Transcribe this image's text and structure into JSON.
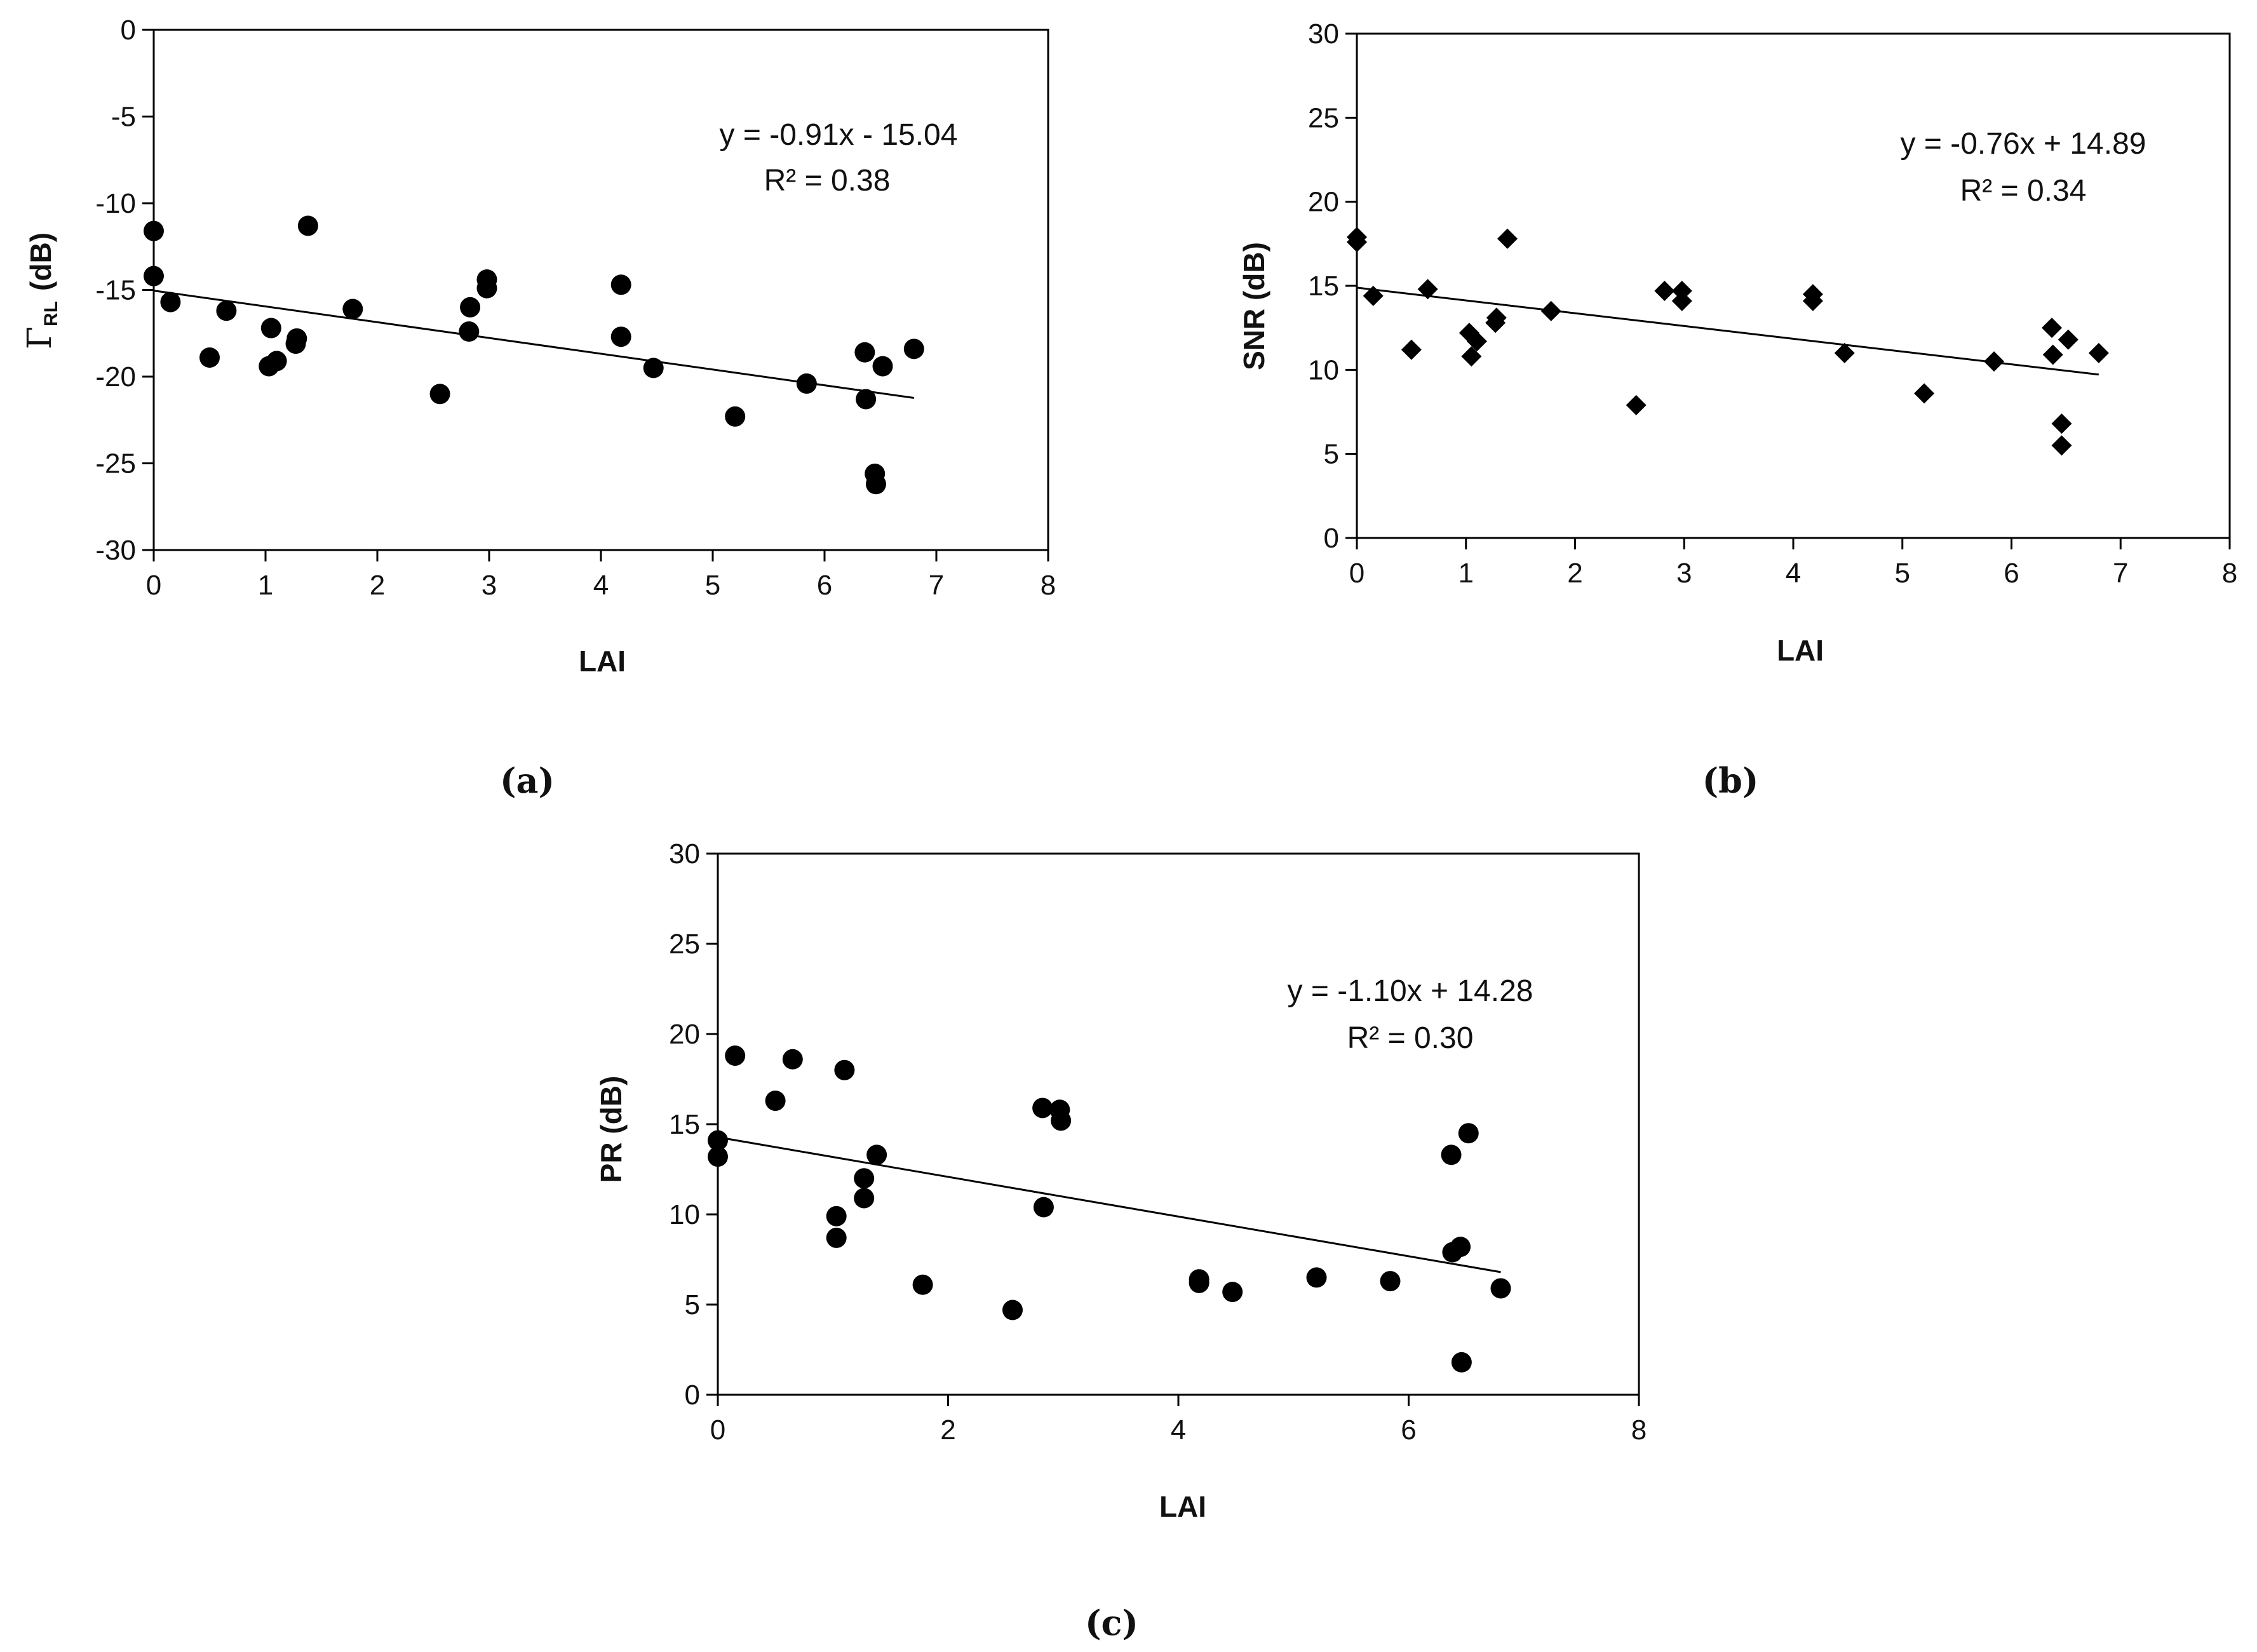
{
  "chart_data": [
    {
      "type": "scatter",
      "panel_label": "(a)",
      "xlabel": "LAI",
      "ylabel_main": "Γ",
      "ylabel_sub": "RL",
      "ylabel_unit": "(dB)",
      "xlim": [
        0,
        8
      ],
      "ylim": [
        -30,
        0
      ],
      "xticks": [
        "0",
        "1",
        "2",
        "3",
        "4",
        "5",
        "6",
        "7",
        "8"
      ],
      "yticks": [
        "-30",
        "-25",
        "-20",
        "-15",
        "-10",
        "-5",
        "0"
      ],
      "marker": "circle",
      "equation": "y = -0.91x - 15.04",
      "r_squared": "R² = 0.38",
      "trend": {
        "slope": -0.91,
        "intercept": -15.04,
        "x_range": [
          0,
          6.8
        ]
      },
      "series": [
        {
          "name": "data",
          "x": [
            0,
            0,
            0.15,
            0.5,
            0.65,
            1.03,
            1.05,
            1.1,
            1.27,
            1.28,
            1.38,
            1.78,
            2.56,
            2.82,
            2.83,
            2.98,
            2.98,
            4.18,
            4.18,
            4.47,
            5.2,
            5.84,
            6.36,
            6.37,
            6.45,
            6.46,
            6.52,
            6.8
          ],
          "y": [
            -11.6,
            -14.2,
            -15.7,
            -18.9,
            -16.2,
            -19.4,
            -17.2,
            -19.1,
            -18.1,
            -17.8,
            -11.3,
            -16.1,
            -21.0,
            -17.4,
            -16.0,
            -14.4,
            -14.9,
            -14.7,
            -17.7,
            -19.5,
            -22.3,
            -20.4,
            -18.6,
            -21.3,
            -25.6,
            -26.2,
            -19.4,
            -18.4
          ]
        }
      ]
    },
    {
      "type": "scatter",
      "panel_label": "(b)",
      "xlabel": "LAI",
      "ylabel": "SNR (dB)",
      "xlim": [
        0,
        8
      ],
      "ylim": [
        0,
        30
      ],
      "xticks": [
        "0",
        "1",
        "2",
        "3",
        "4",
        "5",
        "6",
        "7",
        "8"
      ],
      "yticks": [
        "0",
        "5",
        "10",
        "15",
        "20",
        "25",
        "30"
      ],
      "marker": "diamond",
      "equation": "y = -0.76x + 14.89",
      "r_squared": "R² = 0.34",
      "trend": {
        "slope": -0.76,
        "intercept": 14.89,
        "x_range": [
          0,
          6.8
        ]
      },
      "series": [
        {
          "name": "data",
          "x": [
            0,
            0,
            0.15,
            0.5,
            0.65,
            1.03,
            1.05,
            1.1,
            1.27,
            1.28,
            1.38,
            1.78,
            2.56,
            2.82,
            2.98,
            2.98,
            4.18,
            4.18,
            4.47,
            5.2,
            5.84,
            6.37,
            6.38,
            6.46,
            6.46,
            6.52,
            6.8
          ],
          "y": [
            17.6,
            17.9,
            14.4,
            11.2,
            14.8,
            12.2,
            10.8,
            11.7,
            12.8,
            13.1,
            17.8,
            13.5,
            7.9,
            14.7,
            14.7,
            14.1,
            14.5,
            14.1,
            11.0,
            8.6,
            10.5,
            12.5,
            10.9,
            6.8,
            5.5,
            11.8,
            11.0
          ]
        }
      ]
    },
    {
      "type": "scatter",
      "panel_label": "(c)",
      "xlabel": "LAI",
      "ylabel": "PR (dB)",
      "xlim": [
        0,
        8
      ],
      "ylim": [
        0,
        30
      ],
      "xticks": [
        "0",
        "2",
        "4",
        "6",
        "8"
      ],
      "yticks": [
        "0",
        "5",
        "10",
        "15",
        "20",
        "25",
        "30"
      ],
      "marker": "circle",
      "equation": "y = -1.10x + 14.28",
      "r_squared": "R² = 0.30",
      "trend": {
        "slope": -1.1,
        "intercept": 14.28,
        "x_range": [
          0,
          6.8
        ]
      },
      "series": [
        {
          "name": "data",
          "x": [
            0,
            0,
            0.15,
            0.5,
            0.65,
            1.03,
            1.03,
            1.1,
            1.27,
            1.27,
            1.38,
            1.78,
            2.56,
            2.82,
            2.83,
            2.97,
            2.98,
            4.18,
            4.18,
            4.47,
            5.2,
            5.84,
            6.37,
            6.38,
            6.45,
            6.46,
            6.52,
            6.8
          ],
          "y": [
            14.1,
            13.2,
            18.8,
            16.3,
            18.6,
            9.9,
            8.7,
            18.0,
            12.0,
            10.9,
            13.3,
            6.1,
            4.7,
            15.9,
            10.4,
            15.8,
            15.2,
            6.4,
            6.2,
            5.7,
            6.5,
            6.3,
            13.3,
            7.9,
            8.2,
            1.8,
            14.5,
            5.9
          ]
        }
      ]
    }
  ]
}
